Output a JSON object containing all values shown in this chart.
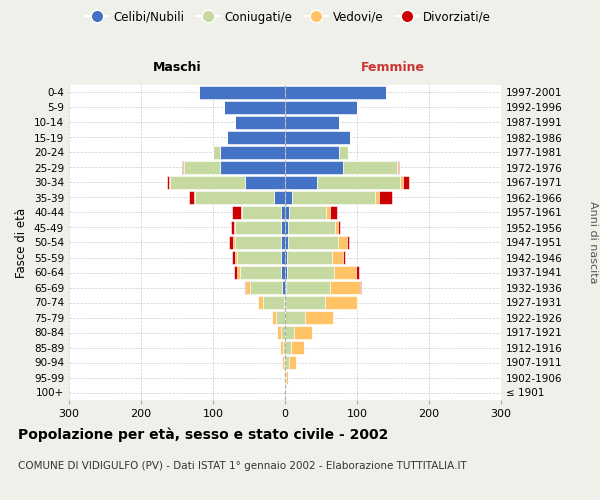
{
  "age_groups": [
    "100+",
    "95-99",
    "90-94",
    "85-89",
    "80-84",
    "75-79",
    "70-74",
    "65-69",
    "60-64",
    "55-59",
    "50-54",
    "45-49",
    "40-44",
    "35-39",
    "30-34",
    "25-29",
    "20-24",
    "15-19",
    "10-14",
    "5-9",
    "0-4"
  ],
  "birth_years": [
    "≤ 1901",
    "1902-1906",
    "1907-1911",
    "1912-1916",
    "1917-1921",
    "1922-1926",
    "1927-1931",
    "1932-1936",
    "1937-1941",
    "1942-1946",
    "1947-1951",
    "1952-1956",
    "1957-1961",
    "1962-1966",
    "1967-1971",
    "1972-1976",
    "1977-1981",
    "1982-1986",
    "1987-1991",
    "1992-1996",
    "1997-2001"
  ],
  "male_celibi": [
    0,
    0,
    0,
    0,
    0,
    0,
    2,
    4,
    5,
    5,
    5,
    5,
    5,
    15,
    55,
    90,
    90,
    80,
    70,
    85,
    120
  ],
  "male_coniugati": [
    0,
    0,
    2,
    3,
    5,
    12,
    28,
    45,
    58,
    62,
    65,
    65,
    55,
    110,
    105,
    50,
    10,
    0,
    0,
    0,
    0
  ],
  "male_vedovi": [
    0,
    1,
    2,
    4,
    6,
    6,
    8,
    5,
    4,
    3,
    2,
    1,
    1,
    1,
    1,
    1,
    0,
    0,
    0,
    0,
    0
  ],
  "male_divorziati": [
    0,
    0,
    0,
    0,
    0,
    0,
    0,
    2,
    4,
    4,
    6,
    4,
    12,
    8,
    3,
    2,
    0,
    0,
    0,
    0,
    0
  ],
  "female_nubili": [
    0,
    0,
    0,
    0,
    0,
    0,
    0,
    2,
    3,
    3,
    4,
    4,
    5,
    10,
    45,
    80,
    75,
    90,
    75,
    100,
    140
  ],
  "female_coniugate": [
    0,
    1,
    5,
    8,
    12,
    28,
    55,
    60,
    65,
    62,
    70,
    65,
    52,
    115,
    115,
    75,
    12,
    0,
    0,
    0,
    0
  ],
  "female_vedove": [
    0,
    3,
    10,
    18,
    25,
    38,
    45,
    42,
    30,
    15,
    12,
    5,
    5,
    5,
    4,
    2,
    1,
    0,
    0,
    0,
    0
  ],
  "female_divorziate": [
    0,
    0,
    0,
    0,
    0,
    0,
    0,
    2,
    5,
    4,
    3,
    2,
    10,
    18,
    8,
    2,
    0,
    0,
    0,
    0,
    0
  ],
  "color_celibi": "#4472c4",
  "color_coniugati": "#c5d9a0",
  "color_vedovi": "#ffc265",
  "color_divorziati": "#cc0000",
  "xlim": 300,
  "title": "Popolazione per età, sesso e stato civile - 2002",
  "subtitle": "COMUNE DI VIDIGULFO (PV) - Dati ISTAT 1° gennaio 2002 - Elaborazione TUTTITALIA.IT",
  "ylabel_left": "Fasce di età",
  "ylabel_right": "Anni di nascita",
  "label_maschi": "Maschi",
  "label_femmine": "Femmine",
  "legend_labels": [
    "Celibi/Nubili",
    "Coniugati/e",
    "Vedovi/e",
    "Divorziati/e"
  ],
  "bg_color": "#f0f0ea",
  "plot_bg": "#ffffff",
  "maschi_color": "#000000",
  "femmine_color": "#cc3333"
}
